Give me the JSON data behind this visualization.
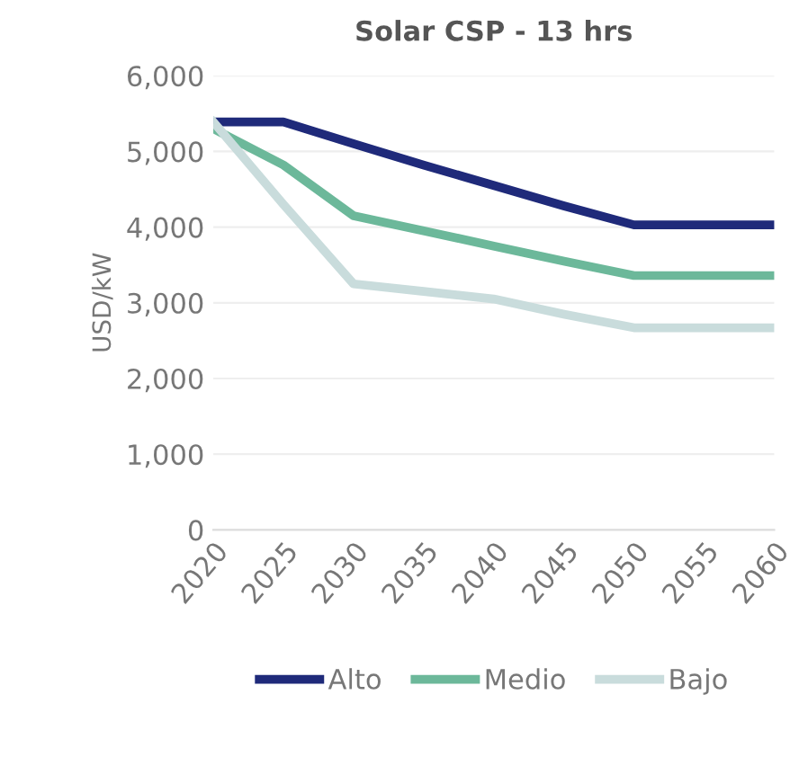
{
  "chart_data": {
    "type": "line",
    "title": "Solar CSP - 13 hrs",
    "ylabel": "USD/kW",
    "x": [
      2020,
      2025,
      2030,
      2035,
      2040,
      2045,
      2050,
      2055,
      2060
    ],
    "series": [
      {
        "name": "Alto",
        "color": "#1f2a7a",
        "values": [
          5390,
          5390,
          5100,
          4820,
          4550,
          4280,
          4030,
          4030,
          4030
        ]
      },
      {
        "name": "Medio",
        "color": "#6cb89a",
        "values": [
          5300,
          4820,
          4150,
          3950,
          3750,
          3550,
          3360,
          3360,
          3360
        ]
      },
      {
        "name": "Bajo",
        "color": "#c9dcdc",
        "values": [
          5390,
          4300,
          3250,
          3150,
          3050,
          2850,
          2670,
          2670,
          2670
        ]
      }
    ],
    "xlim": [
      2020,
      2060
    ],
    "xticks": [
      2020,
      2025,
      2030,
      2035,
      2040,
      2045,
      2050,
      2055,
      2060
    ],
    "ylim": [
      0,
      6000
    ],
    "yticks": [
      {
        "value": 0,
        "label": "0"
      },
      {
        "value": 1000,
        "label": "1,000"
      },
      {
        "value": 2000,
        "label": "2,000"
      },
      {
        "value": 3000,
        "label": "3,000"
      },
      {
        "value": 4000,
        "label": "4,000"
      },
      {
        "value": 5000,
        "label": "5,000"
      },
      {
        "value": 6000,
        "label": "6,000"
      }
    ],
    "grid": "y",
    "legend": "bottom",
    "marker": "none",
    "line_style": "solid"
  }
}
